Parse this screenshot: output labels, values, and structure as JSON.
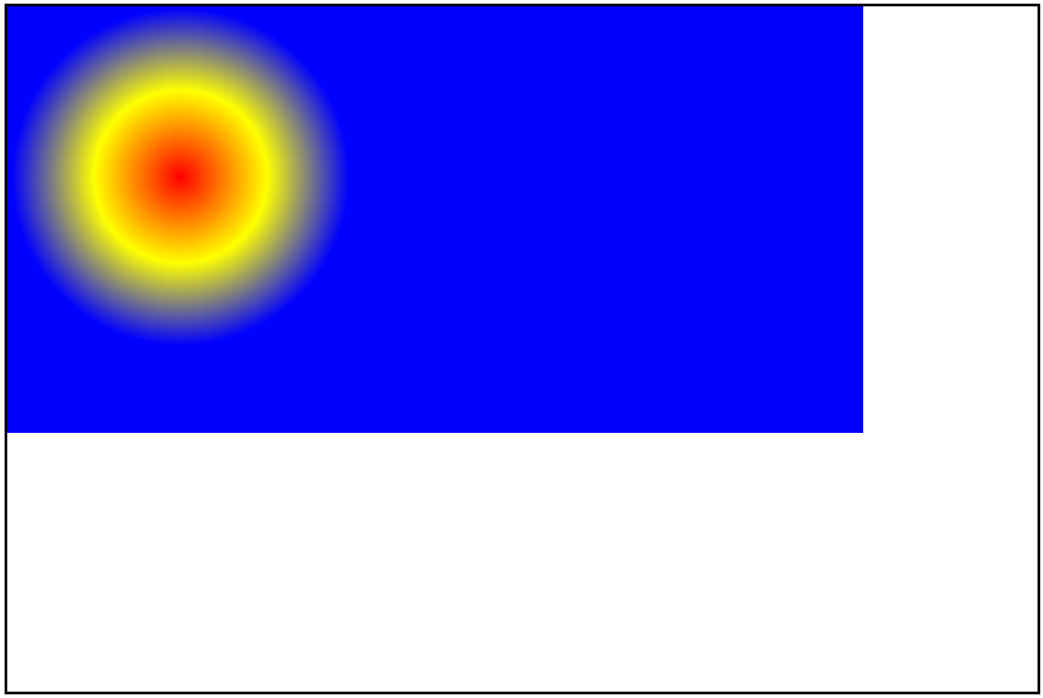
{
  "canvas": {
    "background_color": "#ffffff",
    "border_color": "#000000"
  },
  "gradient_rect": {
    "kind": "radial-gradient",
    "color_stops": [
      "#ff0000",
      "#ffff00",
      "#0000ff"
    ]
  }
}
